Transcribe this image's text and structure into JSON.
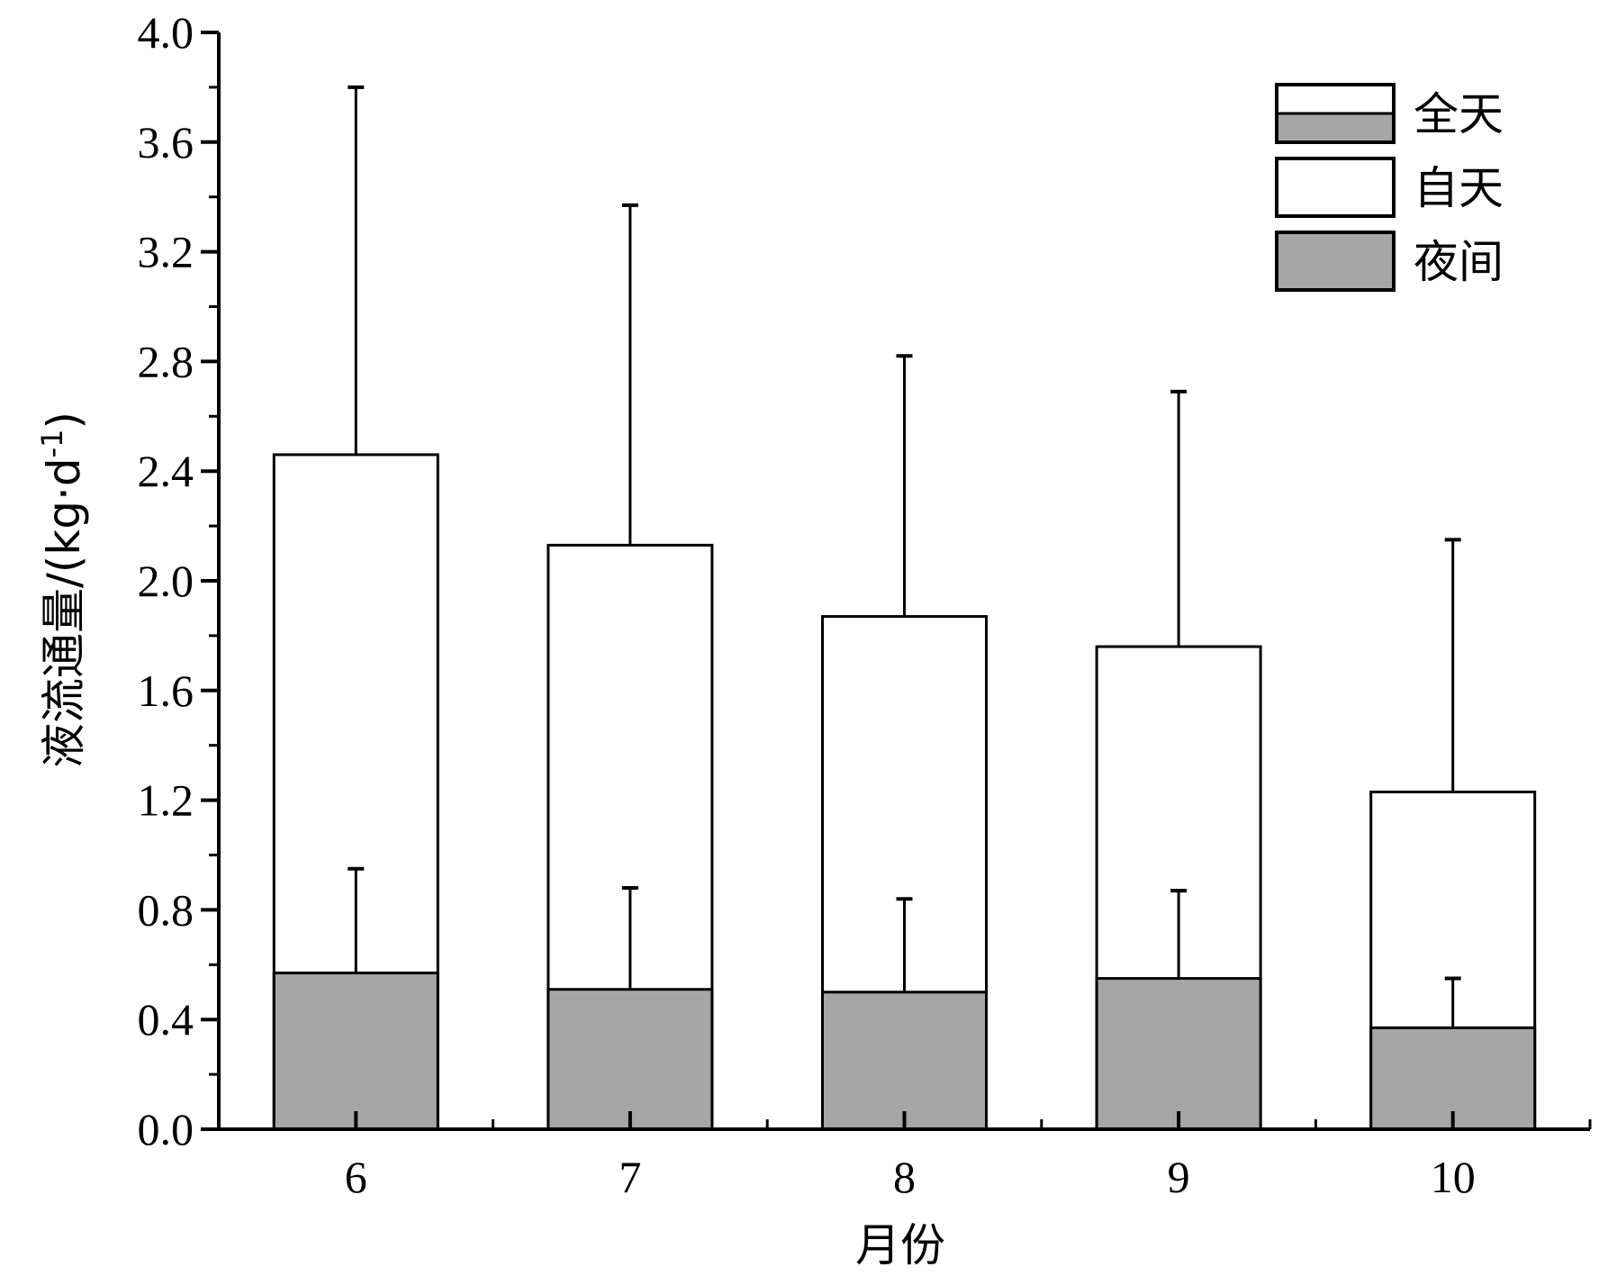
{
  "chart_data": {
    "type": "bar",
    "stacked": true,
    "xlabel": "月份",
    "ylabel": "液流通量/(kg·d-1)",
    "ylabel_parts": {
      "main": "液流通量/(kg·d",
      "superscript": "-1",
      "close": ")"
    },
    "ylim": [
      0.0,
      4.0
    ],
    "yticks": [
      "0.0",
      "0.4",
      "0.8",
      "1.2",
      "1.6",
      "2.0",
      "2.4",
      "2.8",
      "3.2",
      "3.6",
      "4.0"
    ],
    "categories": [
      "6",
      "7",
      "8",
      "9",
      "10"
    ],
    "series": [
      {
        "name": "夜间",
        "values": [
          0.57,
          0.51,
          0.5,
          0.55,
          0.37
        ],
        "error": [
          0.38,
          0.37,
          0.34,
          0.32,
          0.18
        ],
        "color": "#a6a6a6"
      },
      {
        "name": "全天",
        "values": [
          2.46,
          2.13,
          1.87,
          1.76,
          1.23
        ],
        "error": [
          1.34,
          1.24,
          0.95,
          0.93,
          0.92
        ],
        "color": "#ffffff"
      }
    ],
    "legend": {
      "position": "top-right",
      "entries": [
        {
          "label": "全天",
          "style": "split",
          "top_color": "#ffffff",
          "bottom_color": "#a6a6a6"
        },
        {
          "label": "自天",
          "style": "solid",
          "color": "#ffffff"
        },
        {
          "label": "夜间",
          "style": "solid",
          "color": "#a6a6a6"
        }
      ]
    },
    "grid": false
  }
}
